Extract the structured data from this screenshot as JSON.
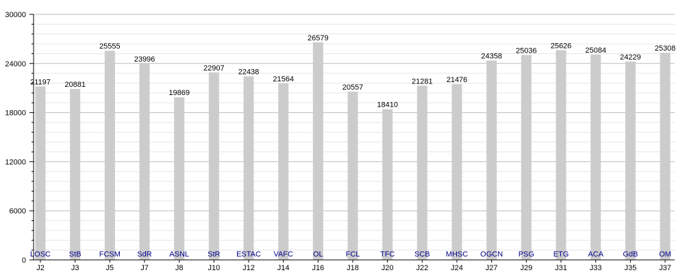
{
  "chart_data": {
    "type": "bar",
    "title": "",
    "xlabel": "",
    "ylabel": "",
    "ylim": [
      0,
      30000
    ],
    "yticks": [
      0,
      6000,
      12000,
      18000,
      24000,
      30000
    ],
    "grid": true,
    "colors": {
      "bar": "#cccccc",
      "team_label": "#00008b",
      "value_label": "#000000",
      "grid_major": "#bbbbbb",
      "grid_minor": "#e6e6e6",
      "axis": "#000000"
    },
    "categories": [
      "J2",
      "J3",
      "J5",
      "J7",
      "J8",
      "J10",
      "J12",
      "J14",
      "J16",
      "J18",
      "J20",
      "J22",
      "J24",
      "J27",
      "J29",
      "J31",
      "J33",
      "J35",
      "J37"
    ],
    "teams": [
      "LOSC",
      "StB",
      "FCSM",
      "SdR",
      "ASNL",
      "StR",
      "ESTAC",
      "VAFC",
      "OL",
      "FCL",
      "TFC",
      "SCB",
      "MHSC",
      "OGCN",
      "PSG",
      "ETG",
      "ACA",
      "GdB",
      "OM"
    ],
    "values": [
      21197,
      20881,
      25555,
      23996,
      19869,
      22907,
      22438,
      21564,
      26579,
      20557,
      18410,
      21281,
      21476,
      24358,
      25036,
      25626,
      25084,
      24229,
      25308
    ]
  }
}
